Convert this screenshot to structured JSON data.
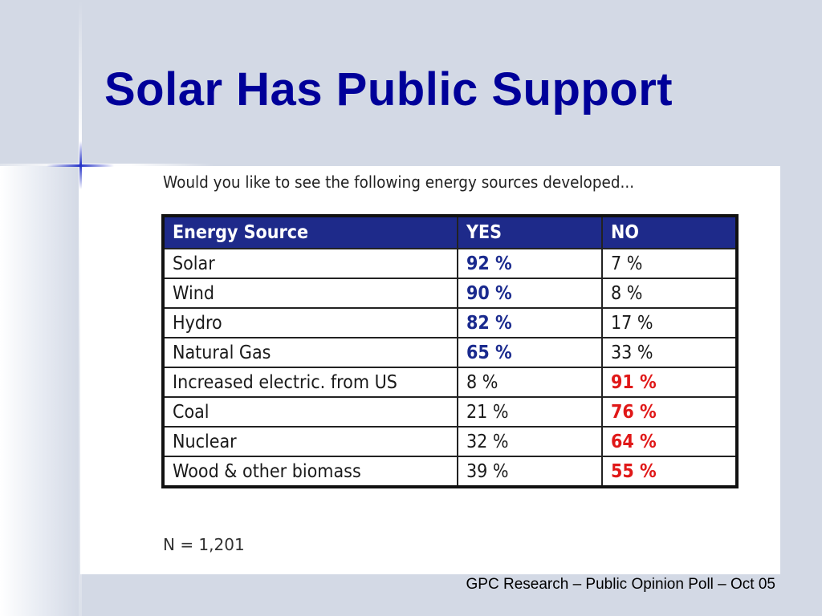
{
  "slide": {
    "title": "Solar Has Public Support",
    "footer": "GPC Research – Public Opinion Poll – Oct 05"
  },
  "poll": {
    "question": "Would you like to see the following energy sources developed...",
    "headers": {
      "source": "Energy Source",
      "yes": "YES",
      "no": "NO"
    },
    "rows": [
      {
        "source": "Solar",
        "yes": "92 %",
        "no": "7 %",
        "majority": "yes"
      },
      {
        "source": "Wind",
        "yes": "90 %",
        "no": "8 %",
        "majority": "yes"
      },
      {
        "source": "Hydro",
        "yes": "82 %",
        "no": "17 %",
        "majority": "yes"
      },
      {
        "source": "Natural Gas",
        "yes": "65 %",
        "no": "33 %",
        "majority": "yes"
      },
      {
        "source": "Increased electric. from US",
        "yes": "8 %",
        "no": "91 %",
        "majority": "no"
      },
      {
        "source": "Coal",
        "yes": "21 %",
        "no": "76 %",
        "majority": "no"
      },
      {
        "source": "Nuclear",
        "yes": "32 %",
        "no": "64 %",
        "majority": "no"
      },
      {
        "source": "Wood & other biomass",
        "yes": "39 %",
        "no": "55 %",
        "majority": "no"
      }
    ],
    "sample_size": "N = 1,201"
  },
  "colors": {
    "title": "#000099",
    "header_bg": "#1e2a8a",
    "yes_highlight": "#1a2a8e",
    "no_highlight": "#e01818",
    "background": "#d3d9e5"
  }
}
